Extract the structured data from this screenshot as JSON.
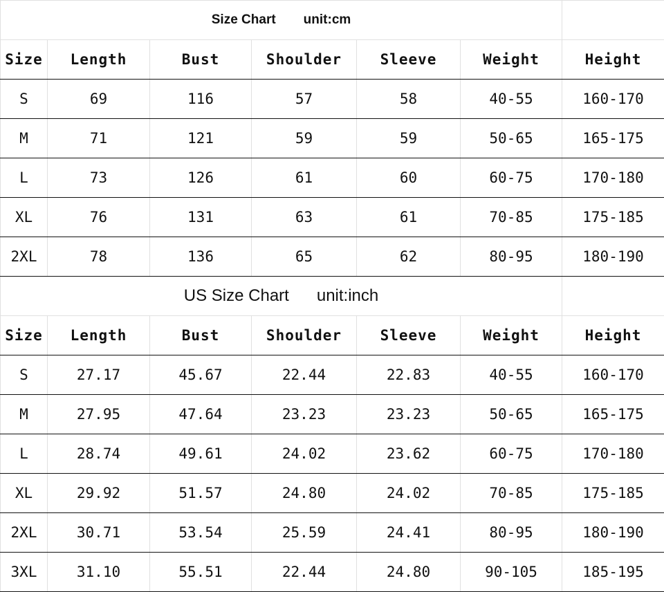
{
  "cm_table": {
    "title": "Size Chart",
    "unit": "unit:cm",
    "headers": [
      "Size",
      "Length",
      "Bust",
      "Shoulder",
      "Sleeve",
      "Weight",
      "Height"
    ],
    "rows": [
      [
        "S",
        "69",
        "116",
        "57",
        "58",
        "40-55",
        "160-170"
      ],
      [
        "M",
        "71",
        "121",
        "59",
        "59",
        "50-65",
        "165-175"
      ],
      [
        "L",
        "73",
        "126",
        "61",
        "60",
        "60-75",
        "170-180"
      ],
      [
        "XL",
        "76",
        "131",
        "63",
        "61",
        "70-85",
        "175-185"
      ],
      [
        "2XL",
        "78",
        "136",
        "65",
        "62",
        "80-95",
        "180-190"
      ]
    ]
  },
  "us_table": {
    "title": "US Size Chart",
    "unit": "unit:inch",
    "headers": [
      "Size",
      "Length",
      "Bust",
      "Shoulder",
      "Sleeve",
      "Weight",
      "Height"
    ],
    "rows": [
      [
        "S",
        "27.17",
        "45.67",
        "22.44",
        "22.83",
        "40-55",
        "160-170"
      ],
      [
        "M",
        "27.95",
        "47.64",
        "23.23",
        "23.23",
        "50-65",
        "165-175"
      ],
      [
        "L",
        "28.74",
        "49.61",
        "24.02",
        "23.62",
        "60-75",
        "170-180"
      ],
      [
        "XL",
        "29.92",
        "51.57",
        "24.80",
        "24.02",
        "70-85",
        "175-185"
      ],
      [
        "2XL",
        "30.71",
        "53.54",
        "25.59",
        "24.41",
        "80-95",
        "180-190"
      ],
      [
        "3XL",
        "31.10",
        "55.51",
        "22.44",
        "24.80",
        "90-105",
        "185-195"
      ]
    ]
  }
}
